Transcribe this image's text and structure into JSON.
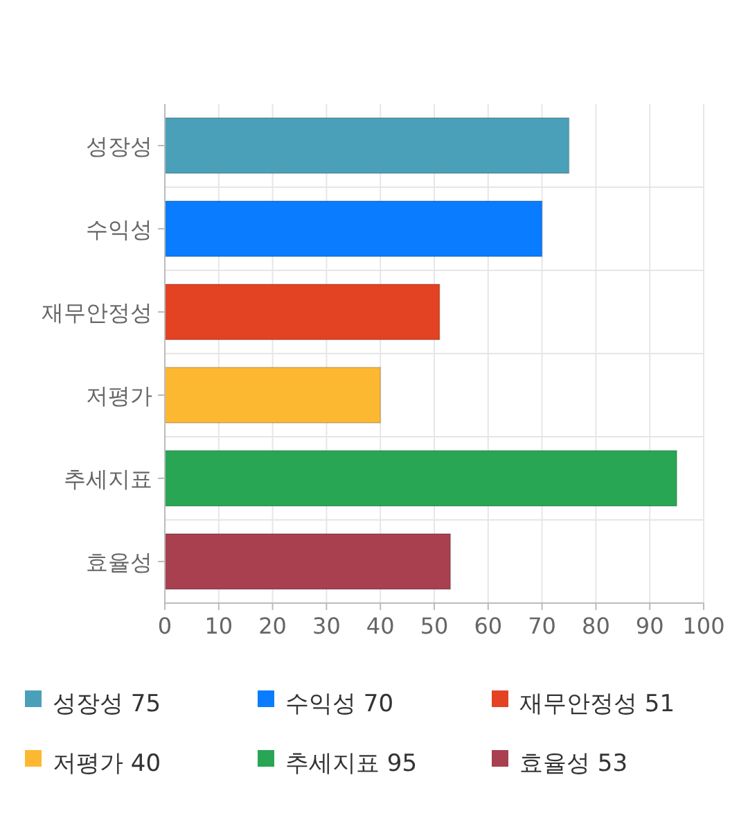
{
  "chart_data": {
    "type": "bar",
    "orientation": "horizontal",
    "categories": [
      "성장성",
      "수익성",
      "재무안정성",
      "저평가",
      "추세지표",
      "효율성"
    ],
    "series": [
      {
        "name": "성장성 75",
        "color": "#4aa0b8",
        "values": [
          75,
          null,
          null,
          null,
          null,
          null
        ]
      },
      {
        "name": "수익성 70",
        "color": "#0a7cff",
        "values": [
          null,
          70,
          null,
          null,
          null,
          null
        ]
      },
      {
        "name": "재무안정성 51",
        "color": "#e34322",
        "values": [
          null,
          null,
          51,
          null,
          null,
          null
        ]
      },
      {
        "name": "저평가 40",
        "color": "#fdb832",
        "values": [
          null,
          null,
          null,
          40,
          null,
          null
        ]
      },
      {
        "name": "추세지표 95",
        "color": "#28a654",
        "values": [
          null,
          null,
          null,
          null,
          95,
          null
        ]
      },
      {
        "name": "효율성 53",
        "color": "#a8404f",
        "values": [
          null,
          null,
          null,
          null,
          null,
          53
        ]
      }
    ],
    "xlim": [
      0,
      100
    ],
    "xticks": [
      0,
      10,
      20,
      30,
      40,
      50,
      60,
      70,
      80,
      90,
      100
    ],
    "grid": true,
    "legend": "bottom"
  }
}
